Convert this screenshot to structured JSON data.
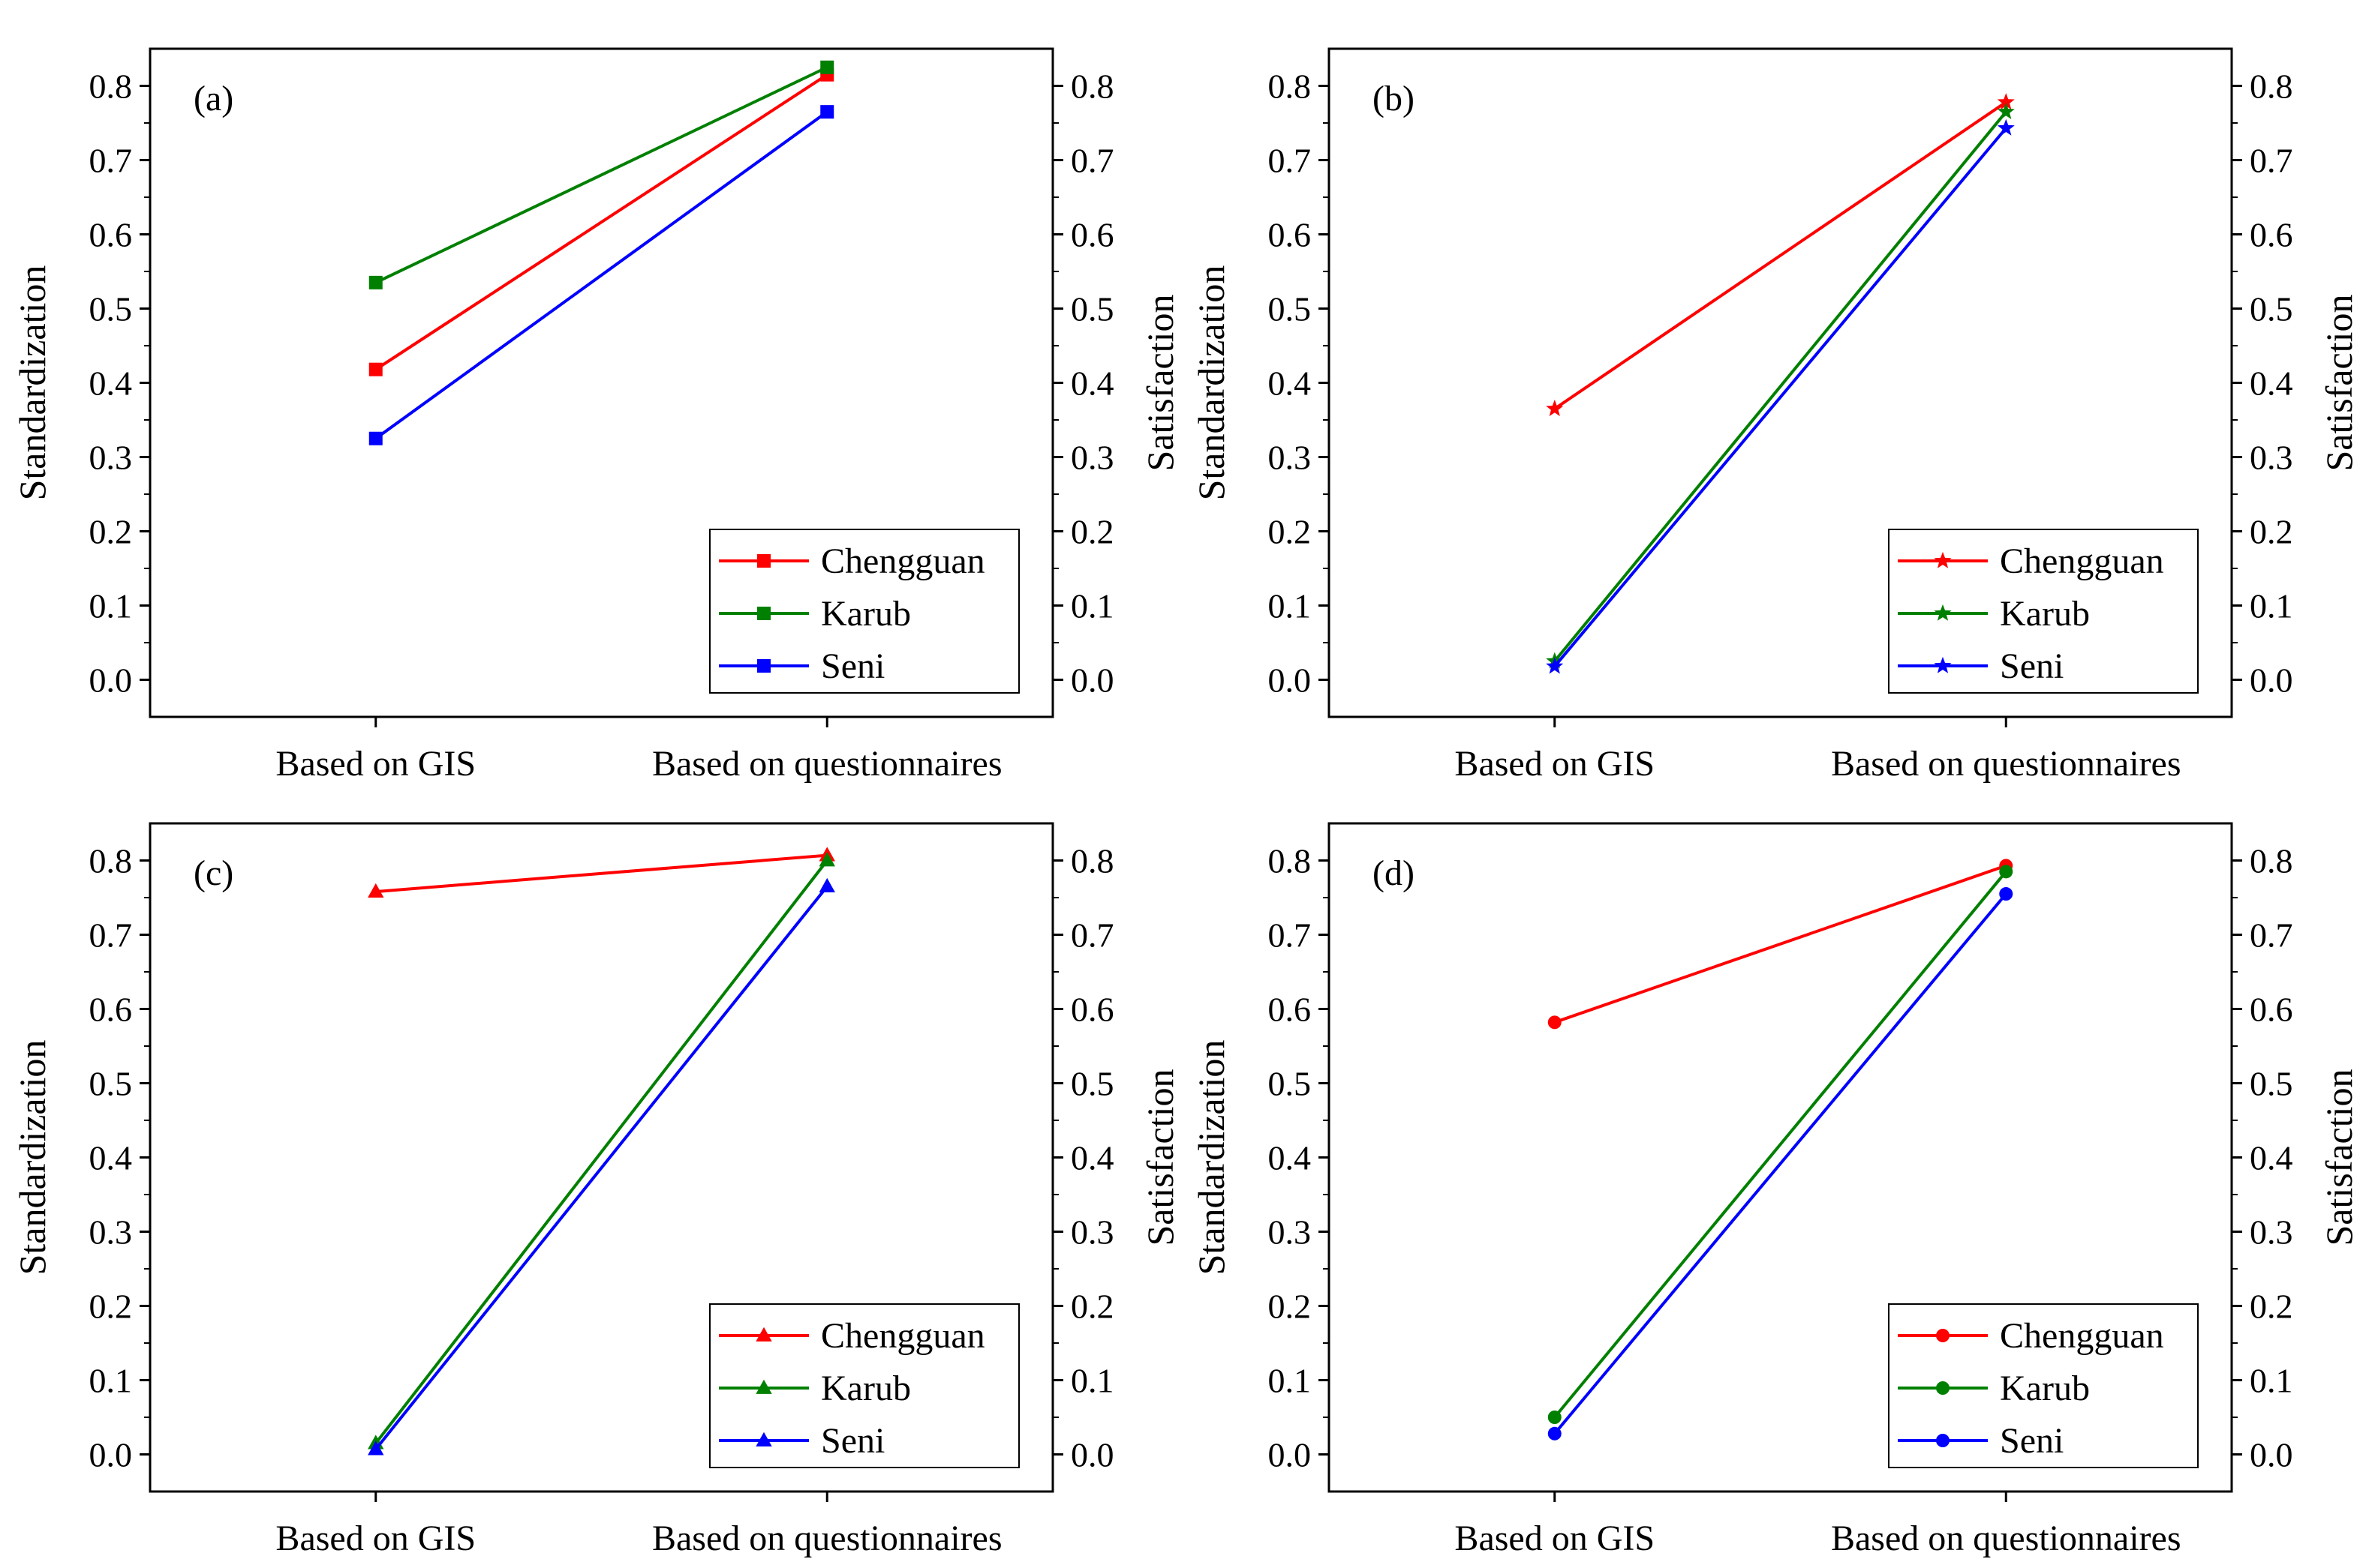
{
  "figure": {
    "colors": {
      "Chengguan": "#ff0000",
      "Karub": "#008000",
      "Seni": "#0000ff"
    }
  },
  "chart_data": [
    {
      "type": "line",
      "panel_label": "(a)",
      "marker": "square",
      "categories": [
        "Based on GIS",
        "Based on questionnaires"
      ],
      "ylabel": "Standardization",
      "ylabel_right": "Satisfaction",
      "ylim": [
        -0.05,
        0.85
      ],
      "yticks": [
        "0.0",
        "0.1",
        "0.2",
        "0.3",
        "0.4",
        "0.5",
        "0.6",
        "0.7",
        "0.8"
      ],
      "legend": "bottom-right",
      "grid": false,
      "series": [
        {
          "name": "Chengguan",
          "color": "#ff0000",
          "values": [
            0.418,
            0.815
          ]
        },
        {
          "name": "Karub",
          "color": "#008000",
          "values": [
            0.535,
            0.825
          ]
        },
        {
          "name": "Seni",
          "color": "#0000ff",
          "values": [
            0.325,
            0.765
          ]
        }
      ]
    },
    {
      "type": "line",
      "panel_label": "(b)",
      "marker": "star",
      "categories": [
        "Based on GIS",
        "Based on questionnaires"
      ],
      "ylabel": "Standardization",
      "ylabel_right": "Satisfaction",
      "ylim": [
        -0.05,
        0.85
      ],
      "yticks": [
        "0.0",
        "0.1",
        "0.2",
        "0.3",
        "0.4",
        "0.5",
        "0.6",
        "0.7",
        "0.8"
      ],
      "legend": "bottom-right",
      "grid": false,
      "series": [
        {
          "name": "Chengguan",
          "color": "#ff0000",
          "values": [
            0.365,
            0.778
          ]
        },
        {
          "name": "Karub",
          "color": "#008000",
          "values": [
            0.025,
            0.765
          ]
        },
        {
          "name": "Seni",
          "color": "#0000ff",
          "values": [
            0.018,
            0.743
          ]
        }
      ]
    },
    {
      "type": "line",
      "panel_label": "(c)",
      "marker": "triangle",
      "categories": [
        "Based on GIS",
        "Based on questionnaires"
      ],
      "ylabel": "Standardization",
      "ylabel_right": "Satisfaction",
      "ylim": [
        -0.05,
        0.85
      ],
      "yticks": [
        "0.0",
        "0.1",
        "0.2",
        "0.3",
        "0.4",
        "0.5",
        "0.6",
        "0.7",
        "0.8"
      ],
      "legend": "bottom-right",
      "grid": false,
      "series": [
        {
          "name": "Chengguan",
          "color": "#ff0000",
          "values": [
            0.758,
            0.807
          ]
        },
        {
          "name": "Karub",
          "color": "#008000",
          "values": [
            0.015,
            0.8
          ]
        },
        {
          "name": "Seni",
          "color": "#0000ff",
          "values": [
            0.007,
            0.765
          ]
        }
      ]
    },
    {
      "type": "line",
      "panel_label": "(d)",
      "marker": "circle",
      "categories": [
        "Based on GIS",
        "Based on questionnaires"
      ],
      "ylabel": "Standardization",
      "ylabel_right": "Satisfaction",
      "ylim": [
        -0.05,
        0.85
      ],
      "yticks": [
        "0.0",
        "0.1",
        "0.2",
        "0.3",
        "0.4",
        "0.5",
        "0.6",
        "0.7",
        "0.8"
      ],
      "legend": "bottom-right",
      "grid": false,
      "series": [
        {
          "name": "Chengguan",
          "color": "#ff0000",
          "values": [
            0.582,
            0.793
          ]
        },
        {
          "name": "Karub",
          "color": "#008000",
          "values": [
            0.05,
            0.785
          ]
        },
        {
          "name": "Seni",
          "color": "#0000ff",
          "values": [
            0.028,
            0.755
          ]
        }
      ]
    }
  ]
}
